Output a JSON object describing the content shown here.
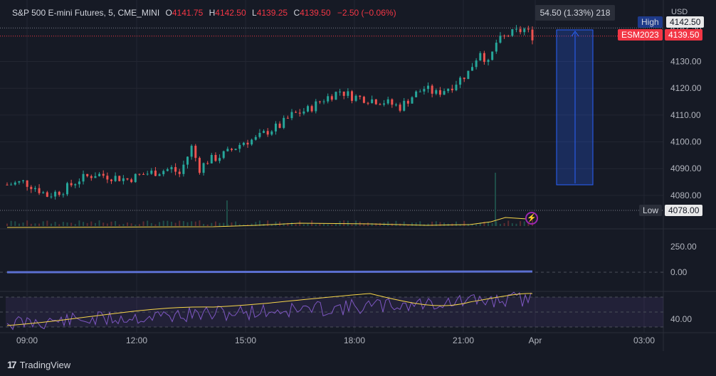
{
  "header": {
    "symbol": "S&P 500 E-mini Futures, 5, CME_MINI",
    "open_label": "O",
    "open": "4141.75",
    "high_label": "H",
    "high": "4142.50",
    "low_label": "L",
    "low": "4139.25",
    "close_label": "C",
    "close": "4139.50",
    "change": "−2.50 (−0.06%)"
  },
  "measure_label": "54.50 (1.33%) 218",
  "currency": "USD",
  "price_tags": {
    "high_label": "High",
    "high_value": "4142.50",
    "ticker": "ESM2023",
    "last_value": "4139.50",
    "low_label": "Low",
    "low_value": "4078.00"
  },
  "brand": "TradingView",
  "colors": {
    "background": "#161a25",
    "up": "#26a69a",
    "down": "#ef5350",
    "accent": "#2962ff",
    "ma": "#f7d64a",
    "rsi": "#7e57c2"
  },
  "icons": [
    "flash-icon",
    "tradingview-logo-icon"
  ],
  "chart_data": {
    "type": "line",
    "series_kind": "candlestick",
    "x_ticks": [
      "09:00",
      "12:00",
      "15:00",
      "18:00",
      "21:00",
      "Apr",
      "03:00"
    ],
    "y_ticks": [
      "4080.00",
      "4090.00",
      "4100.00",
      "4110.00",
      "4120.00",
      "4130.00",
      "4142.50"
    ],
    "ylim": [
      4076,
      4145
    ],
    "price_path": [
      [
        0,
        4084
      ],
      [
        8,
        4085
      ],
      [
        14,
        4083
      ],
      [
        20,
        4080
      ],
      [
        28,
        4082
      ],
      [
        36,
        4086
      ],
      [
        44,
        4088
      ],
      [
        52,
        4087
      ],
      [
        60,
        4086
      ],
      [
        68,
        4088
      ],
      [
        76,
        4089
      ],
      [
        82,
        4090
      ],
      [
        86,
        4088
      ],
      [
        92,
        4098
      ],
      [
        96,
        4090
      ],
      [
        100,
        4093
      ],
      [
        104,
        4094
      ],
      [
        110,
        4096
      ],
      [
        118,
        4100
      ],
      [
        124,
        4101
      ],
      [
        130,
        4104
      ],
      [
        136,
        4106
      ],
      [
        142,
        4110
      ],
      [
        150,
        4112
      ],
      [
        158,
        4116
      ],
      [
        166,
        4119
      ],
      [
        172,
        4117
      ],
      [
        180,
        4116
      ],
      [
        188,
        4115
      ],
      [
        196,
        4113
      ],
      [
        202,
        4117
      ],
      [
        208,
        4120
      ],
      [
        214,
        4118
      ],
      [
        222,
        4121
      ],
      [
        230,
        4126
      ],
      [
        236,
        4134
      ],
      [
        240,
        4129
      ],
      [
        244,
        4137
      ],
      [
        250,
        4140
      ],
      [
        258,
        4142
      ],
      [
        262,
        4139.5
      ]
    ],
    "indicator_ticks": [
      "250.00",
      "0.00",
      "40.00"
    ]
  }
}
